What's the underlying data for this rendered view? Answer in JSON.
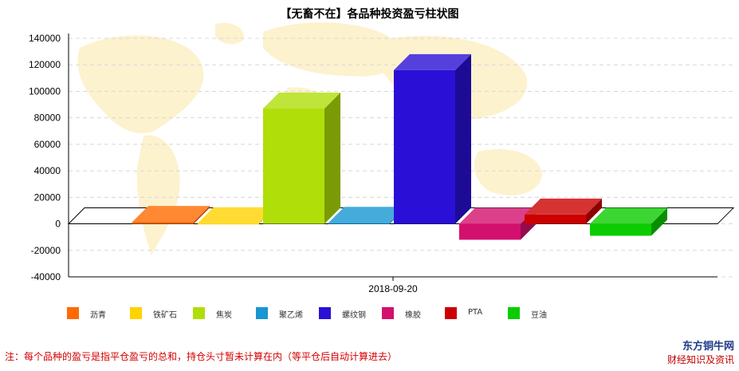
{
  "chart_data": {
    "type": "bar",
    "title": "【无畜不在】各品种投资盈亏柱状图",
    "categories": [
      "2018-09-20"
    ],
    "series": [
      {
        "name": "沥青",
        "value": 1500,
        "color": "#ff6a00"
      },
      {
        "name": "铁矿石",
        "value": 500,
        "color": "#ffd200"
      },
      {
        "name": "焦炭",
        "value": 87000,
        "color": "#b0de09"
      },
      {
        "name": "聚乙烯",
        "value": 800,
        "color": "#1796d2"
      },
      {
        "name": "螺纹钢",
        "value": 116000,
        "color": "#2a10d6"
      },
      {
        "name": "橡胶",
        "value": -12000,
        "color": "#d4106e"
      },
      {
        "name": "PTA",
        "value": 7000,
        "color": "#cc0000"
      },
      {
        "name": "豆油",
        "value": -9000,
        "color": "#0bcc00"
      }
    ],
    "y_ticks": [
      140000,
      120000,
      100000,
      80000,
      60000,
      40000,
      20000,
      0,
      -20000,
      -40000
    ],
    "ylim": [
      -40000,
      140000
    ],
    "grid": true,
    "legend_position": "bottom"
  },
  "footnote": "注：每个品种的盈亏是指平仓盈亏的总和，持仓头寸暂未计算在内（等平仓后自动计算进去）",
  "brand": {
    "name": "东方铜牛网",
    "sub": "财经知识及资讯"
  }
}
